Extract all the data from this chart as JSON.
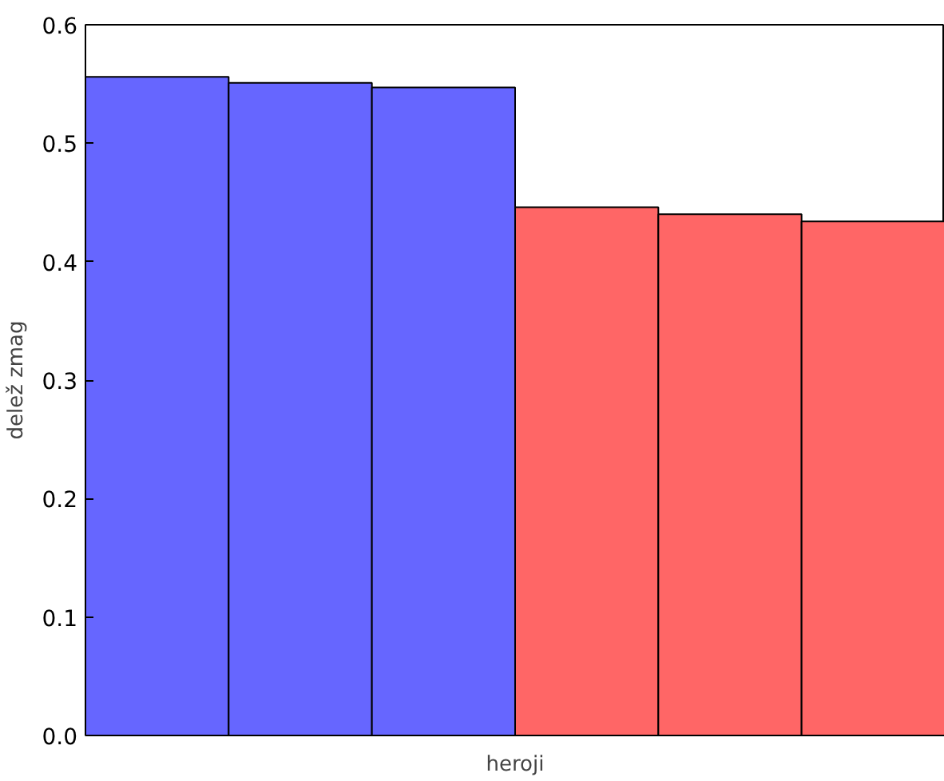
{
  "chart_data": {
    "type": "bar",
    "xlabel": "heroji",
    "ylabel": "delež zmag",
    "categories": [
      null,
      null,
      null,
      null,
      null,
      null
    ],
    "values": [
      0.556,
      0.551,
      0.547,
      0.446,
      0.44,
      0.434
    ],
    "colors": [
      "#6666ff",
      "#6666ff",
      "#6666ff",
      "#ff6666",
      "#ff6666",
      "#ff6666"
    ],
    "ylim": [
      0,
      0.6
    ],
    "yticks": [
      {
        "value": 0,
        "label": "0.0"
      },
      0.1,
      0.2,
      0.3,
      0.4,
      0.5,
      0.6
    ],
    "grid": false
  }
}
